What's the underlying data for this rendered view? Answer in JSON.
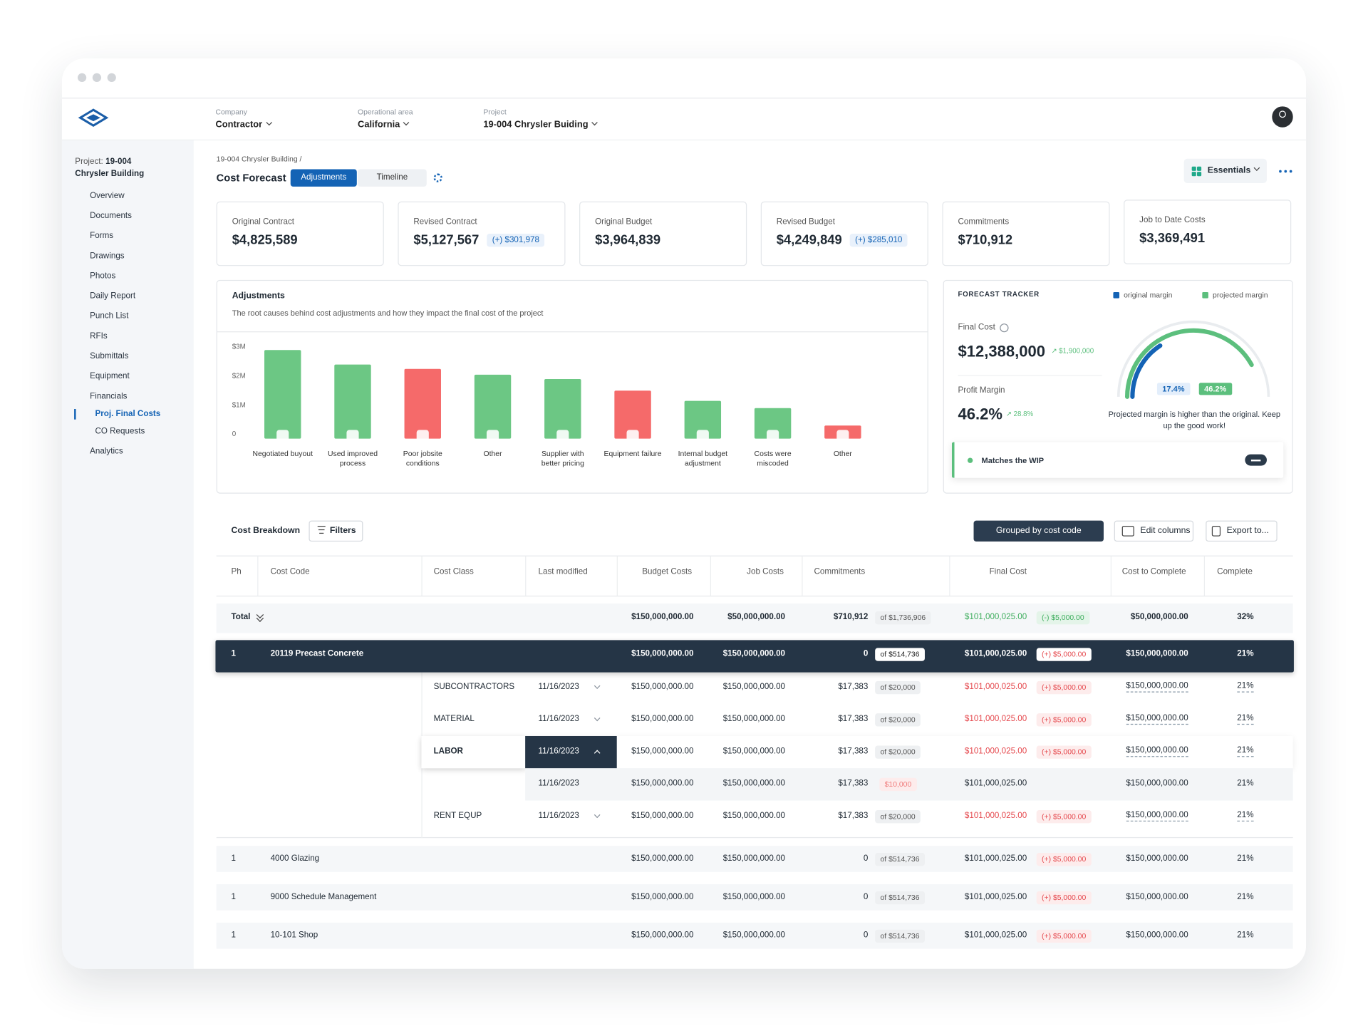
{
  "topbar": {
    "filters": [
      {
        "label": "Company",
        "value": "Contractor"
      },
      {
        "label": "Operational area",
        "value": "California"
      },
      {
        "label": "Project",
        "value": "19-004 Chrysler Buiding"
      }
    ]
  },
  "sidebar": {
    "project_label": "Project:",
    "project_id": "19-004",
    "project_name": "Chrysler Building",
    "items": [
      {
        "label": "Overview"
      },
      {
        "label": "Documents"
      },
      {
        "label": "Forms"
      },
      {
        "label": "Drawings"
      },
      {
        "label": "Photos"
      },
      {
        "label": "Daily Report"
      },
      {
        "label": "Punch List"
      },
      {
        "label": "RFIs"
      },
      {
        "label": "Submittals"
      },
      {
        "label": "Equipment"
      },
      {
        "label": "Financials",
        "children": [
          "Proj. Final Costs",
          "CO Requests"
        ]
      },
      {
        "label": "Analytics"
      }
    ]
  },
  "header": {
    "breadcrumb": "19-004 Chrysler Building /",
    "title": "Cost Forecast",
    "tabs": [
      "Adjustments",
      "Timeline"
    ],
    "view": "Essentials"
  },
  "kpis": [
    {
      "label": "Original Contract",
      "value": "$4,825,589"
    },
    {
      "label": "Revised Contract",
      "value": "$5,127,567",
      "delta": "(+) $301,978"
    },
    {
      "label": "Original Budget",
      "value": "$3,964,839"
    },
    {
      "label": "Revised Budget",
      "value": "$4,249,849",
      "delta": "(+) $285,010"
    },
    {
      "label": "Commitments",
      "value": "$710,912"
    },
    {
      "label": "Job to Date Costs",
      "value": "$3,369,491"
    }
  ],
  "chart_data": {
    "type": "bar",
    "title": "Adjustments",
    "subtitle": "The root causes behind cost adjustments and how they impact the final cost of the project",
    "categories": [
      "Negotiated buyout",
      "Used improved process",
      "Poor jobsite conditions",
      "Other",
      "Supplier with better pricing",
      "Equipment failure",
      "Internal budget adjustment",
      "Costs were miscoded",
      "Other"
    ],
    "values": [
      2900000,
      2400000,
      2250000,
      2050000,
      1900000,
      1500000,
      1150000,
      900000,
      300000
    ],
    "colors": [
      "#6cc784",
      "#6cc784",
      "#f56a6a",
      "#6cc784",
      "#6cc784",
      "#f56a6a",
      "#6cc784",
      "#6cc784",
      "#f56a6a"
    ],
    "ylim": [
      0,
      3000000
    ],
    "yticks": [
      0,
      {
        "value": 1000000,
        "label": "$1M"
      },
      {
        "value": 2000000,
        "label": "$2M"
      },
      {
        "value": 3000000,
        "label": "$3M"
      }
    ]
  },
  "tracker": {
    "title": "FORECAST TRACKER",
    "legend": [
      {
        "name": "original margin",
        "color": "#1463b5"
      },
      {
        "name": "projected margin",
        "color": "#5cbf7d"
      }
    ],
    "final_cost_label": "Final Cost",
    "final_cost": "$12,388,000",
    "final_cost_change": "$1,900,000",
    "margin_label": "Profit Margin",
    "margin": "46.2%",
    "margin_change": "28.8%",
    "gauge": {
      "range": [
        0,
        55
      ],
      "values": [
        17.4,
        46.2
      ],
      "value_labels": [
        "17.4%",
        "46.2%"
      ]
    },
    "message": "Projected margin is higher than the original. Keep up the good work!",
    "status": "Matches the WIP"
  },
  "table": {
    "title": "Cost Breakdown",
    "filters": "Filters",
    "grouping": "Grouped by cost code",
    "edit_columns": "Edit columns",
    "export": "Export to...",
    "columns": [
      "Ph",
      "Cost Code",
      "Cost Class",
      "Last modified",
      "Budget Costs",
      "Job Costs",
      "Commitments",
      "Final Cost",
      "Cost to Complete",
      "Complete"
    ],
    "total": {
      "label": "Total",
      "budget": "$150,000,000.00",
      "job": "$50,000,000.00",
      "commit": "$710,912",
      "commit_of": "of $1,736,906",
      "final": "$101,000,025.00",
      "final_delta": "(-) $5,000.00",
      "ctc": "$50,000,000.00",
      "complete": "32%"
    },
    "rows": [
      {
        "ph": "1",
        "code": "20119 Precast Concrete",
        "budget": "$150,000,000.00",
        "job": "$150,000,000.00",
        "commit": "0",
        "commit_of": "of $514,736",
        "final": "$101,000,025.00",
        "final_delta": "(+) $5,000.00",
        "ctc": "$150,000,000.00",
        "complete": "21%",
        "children": [
          {
            "cls": "SUBCONTRACTORS",
            "date": "11/16/2023",
            "budget": "$150,000,000.00",
            "job": "$150,000,000.00",
            "commit": "$17,383",
            "commit_of": "of $20,000",
            "final": "$101,000,025.00",
            "final_delta": "(+) $5,000.00",
            "ctc": "$150,000,000.00",
            "complete": "21%"
          },
          {
            "cls": "MATERIAL",
            "date": "11/16/2023",
            "budget": "$150,000,000.00",
            "job": "$150,000,000.00",
            "commit": "$17,383",
            "commit_of": "of $20,000",
            "final": "$101,000,025.00",
            "final_delta": "(+) $5,000.00",
            "ctc": "$150,000,000.00",
            "complete": "21%"
          },
          {
            "cls": "LABOR",
            "date": "11/16/2023",
            "budget": "$150,000,000.00",
            "job": "$150,000,000.00",
            "commit": "$17,383",
            "commit_of": "of $20,000",
            "final": "$101,000,025.00",
            "final_delta": "(+) $5,000.00",
            "ctc": "$150,000,000.00",
            "complete": "21%",
            "detail": {
              "date": "11/16/2023",
              "budget": "$150,000,000.00",
              "job": "$150,000,000.00",
              "commit": "$17,383",
              "commit_change": "$10,000",
              "final": "$101,000,025.00",
              "ctc": "$150,000,000.00",
              "complete": "21%"
            }
          },
          {
            "cls": "RENT EQUP",
            "date": "11/16/2023",
            "budget": "$150,000,000.00",
            "job": "$150,000,000.00",
            "commit": "$17,383",
            "commit_of": "of $20,000",
            "final": "$101,000,025.00",
            "final_delta": "(+) $5,000.00",
            "ctc": "$150,000,000.00",
            "complete": "21%"
          }
        ]
      },
      {
        "ph": "1",
        "code": "4000 Glazing",
        "budget": "$150,000,000.00",
        "job": "$150,000,000.00",
        "commit": "0",
        "commit_of": "of $514,736",
        "final": "$101,000,025.00",
        "final_delta": "(+) $5,000.00",
        "ctc": "$150,000,000.00",
        "complete": "21%"
      },
      {
        "ph": "1",
        "code": "9000 Schedule Management",
        "budget": "$150,000,000.00",
        "job": "$150,000,000.00",
        "commit": "0",
        "commit_of": "of $514,736",
        "final": "$101,000,025.00",
        "final_delta": "(+) $5,000.00",
        "ctc": "$150,000,000.00",
        "complete": "21%"
      },
      {
        "ph": "1",
        "code": "10-101 Shop",
        "budget": "$150,000,000.00",
        "job": "$150,000,000.00",
        "commit": "0",
        "commit_of": "of $514,736",
        "final": "$101,000,025.00",
        "final_delta": "(+) $5,000.00",
        "ctc": "$150,000,000.00",
        "complete": "21%"
      }
    ]
  }
}
